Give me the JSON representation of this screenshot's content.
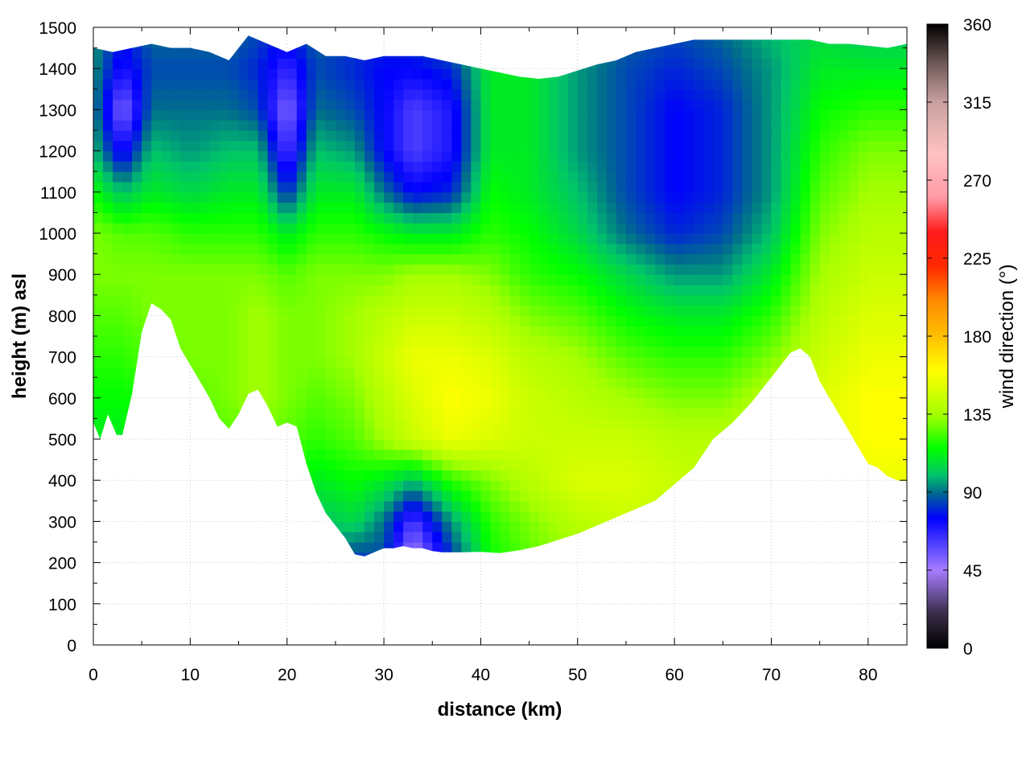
{
  "chart_data": {
    "type": "heatmap",
    "title": "",
    "xlabel": "distance (km)",
    "ylabel": "height (m) asl",
    "colorbar_label": "wind direction (°)",
    "xlim": [
      0,
      84
    ],
    "ylim": [
      0,
      1500
    ],
    "x_ticks": [
      0,
      10,
      20,
      30,
      40,
      50,
      60,
      70,
      80
    ],
    "y_ticks": [
      0,
      100,
      200,
      300,
      400,
      500,
      600,
      700,
      800,
      900,
      1000,
      1100,
      1200,
      1300,
      1400,
      1500
    ],
    "colorbar_range": [
      0,
      360
    ],
    "colorbar_ticks": [
      0,
      45,
      90,
      135,
      180,
      225,
      270,
      315,
      360
    ],
    "grid": true,
    "terrain_profile": {
      "distance_km": [
        0,
        0.7,
        1.5,
        2.4,
        3,
        4,
        5,
        6,
        7,
        8,
        9,
        10,
        11,
        12,
        13,
        14,
        15,
        16,
        17,
        18,
        19,
        20,
        21,
        22,
        23,
        24,
        25,
        26,
        27,
        28,
        29,
        30,
        31,
        32,
        33,
        34,
        35,
        36,
        38,
        40,
        42,
        44,
        46,
        48,
        50,
        52,
        54,
        56,
        58,
        60,
        62,
        64,
        66,
        68,
        70,
        72,
        73,
        74,
        75,
        76,
        77,
        78,
        79,
        80,
        81,
        82,
        83,
        84
      ],
      "height_m": [
        540,
        500,
        560,
        510,
        510,
        610,
        760,
        830,
        815,
        790,
        720,
        680,
        640,
        600,
        550,
        525,
        560,
        610,
        620,
        580,
        530,
        540,
        530,
        440,
        370,
        320,
        290,
        260,
        220,
        215,
        225,
        235,
        235,
        240,
        235,
        235,
        228,
        225,
        225,
        226,
        223,
        230,
        240,
        255,
        270,
        290,
        310,
        330,
        350,
        390,
        430,
        500,
        540,
        590,
        650,
        710,
        720,
        700,
        640,
        600,
        560,
        520,
        480,
        440,
        430,
        410,
        400,
        398
      ]
    },
    "model_top_m": {
      "distance_km": [
        0,
        2,
        4,
        6,
        8,
        10,
        12,
        14,
        16,
        18,
        20,
        22,
        24,
        26,
        28,
        30,
        32,
        34,
        36,
        38,
        40,
        42,
        44,
        46,
        48,
        50,
        52,
        54,
        56,
        58,
        60,
        62,
        64,
        66,
        68,
        70,
        72,
        74,
        76,
        78,
        80,
        82,
        84
      ],
      "height_m": [
        1450,
        1440,
        1450,
        1460,
        1450,
        1450,
        1440,
        1420,
        1480,
        1460,
        1440,
        1460,
        1430,
        1430,
        1420,
        1430,
        1430,
        1430,
        1420,
        1410,
        1400,
        1390,
        1380,
        1375,
        1380,
        1395,
        1410,
        1420,
        1440,
        1450,
        1460,
        1470,
        1470,
        1470,
        1470,
        1470,
        1470,
        1470,
        1460,
        1460,
        1455,
        1450,
        1460
      ]
    },
    "wind_direction_field": {
      "x_km": [
        0,
        3,
        6,
        10,
        14,
        17,
        20,
        23,
        27,
        30,
        33,
        37,
        41,
        45,
        50,
        55,
        60,
        65,
        70,
        75,
        80,
        84
      ],
      "z_m": [
        200,
        300,
        400,
        500,
        600,
        700,
        800,
        900,
        1000,
        1100,
        1200,
        1300,
        1400,
        1500
      ],
      "values_deg": [
        [
          110,
          110,
          110,
          115,
          120,
          125,
          120,
          90,
          80,
          85,
          40,
          80,
          115,
          125,
          135,
          140,
          140,
          140,
          145,
          145,
          150,
          150
        ],
        [
          110,
          110,
          110,
          115,
          120,
          125,
          120,
          100,
          105,
          90,
          60,
          95,
          120,
          130,
          140,
          145,
          140,
          140,
          145,
          145,
          150,
          150
        ],
        [
          110,
          110,
          110,
          115,
          120,
          130,
          120,
          110,
          115,
          110,
          100,
          120,
          130,
          140,
          150,
          150,
          145,
          140,
          145,
          150,
          155,
          155
        ],
        [
          110,
          110,
          115,
          120,
          125,
          130,
          125,
          120,
          125,
          135,
          145,
          155,
          150,
          145,
          145,
          145,
          140,
          140,
          145,
          150,
          160,
          160
        ],
        [
          115,
          115,
          120,
          125,
          130,
          135,
          130,
          125,
          130,
          140,
          150,
          160,
          155,
          145,
          140,
          135,
          130,
          130,
          140,
          150,
          160,
          160
        ],
        [
          120,
          120,
          125,
          130,
          130,
          135,
          130,
          130,
          135,
          145,
          155,
          155,
          150,
          140,
          135,
          125,
          120,
          120,
          130,
          145,
          155,
          155
        ],
        [
          125,
          125,
          130,
          130,
          130,
          135,
          130,
          130,
          135,
          140,
          145,
          145,
          140,
          130,
          125,
          115,
          110,
          110,
          120,
          140,
          150,
          150
        ],
        [
          130,
          130,
          130,
          130,
          130,
          130,
          125,
          130,
          130,
          130,
          135,
          135,
          130,
          120,
          115,
          105,
          95,
          95,
          110,
          135,
          145,
          145
        ],
        [
          130,
          125,
          125,
          120,
          120,
          120,
          110,
          120,
          120,
          115,
          110,
          110,
          120,
          115,
          105,
          90,
          80,
          85,
          100,
          130,
          140,
          140
        ],
        [
          115,
          100,
          110,
          105,
          110,
          110,
          80,
          110,
          110,
          90,
          75,
          80,
          115,
          110,
          100,
          85,
          75,
          80,
          95,
          125,
          135,
          135
        ],
        [
          100,
          70,
          100,
          95,
          100,
          100,
          60,
          100,
          95,
          75,
          60,
          70,
          110,
          110,
          95,
          85,
          75,
          80,
          95,
          120,
          130,
          130
        ],
        [
          95,
          50,
          90,
          90,
          90,
          85,
          50,
          90,
          85,
          75,
          60,
          70,
          110,
          110,
          95,
          85,
          75,
          80,
          95,
          115,
          120,
          120
        ],
        [
          95,
          70,
          85,
          85,
          85,
          80,
          65,
          85,
          80,
          75,
          75,
          80,
          110,
          110,
          95,
          85,
          80,
          85,
          95,
          110,
          110,
          110
        ],
        [
          95,
          80,
          90,
          90,
          90,
          85,
          80,
          90,
          85,
          85,
          85,
          95,
          110,
          110,
          100,
          90,
          85,
          90,
          100,
          105,
          100,
          100
        ]
      ]
    },
    "colormap": {
      "stops_deg": [
        0,
        20,
        45,
        55,
        75,
        90,
        100,
        115,
        135,
        160,
        180,
        200,
        220,
        240,
        260,
        285,
        315,
        335,
        360
      ],
      "colors": [
        "#000000",
        "#3a2d48",
        "#a67cff",
        "#6a55ff",
        "#0000ff",
        "#006e8c",
        "#00c46a",
        "#00ff00",
        "#a6ff00",
        "#ffff00",
        "#ffbf00",
        "#ff8c00",
        "#ff2a00",
        "#ff1a1a",
        "#ff9aa5",
        "#ffc2c2",
        "#c8a0a0",
        "#7a6060",
        "#000000"
      ]
    }
  }
}
